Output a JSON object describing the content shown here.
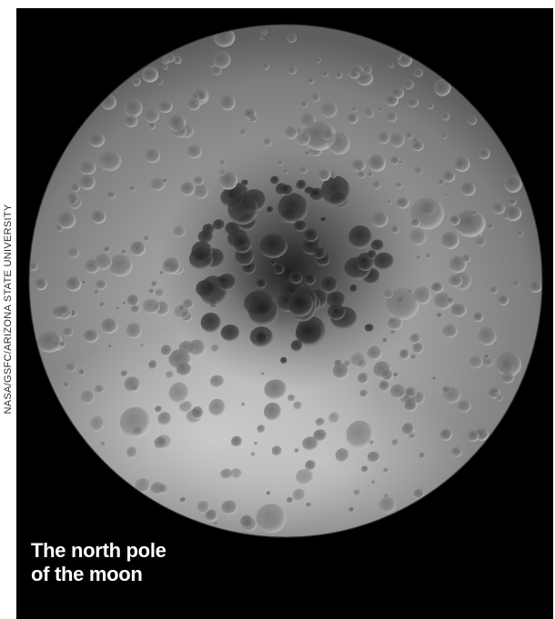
{
  "credit": "NASA/GSFC/ARIZONA STATE UNIVERSITY",
  "caption": {
    "line1": "The north pole",
    "line2": "of the moon"
  },
  "colors": {
    "background": "#000000",
    "moon_light": "#b9b9b9",
    "moon_dark": "#4a4a4a",
    "caption_text": "#ffffff"
  }
}
